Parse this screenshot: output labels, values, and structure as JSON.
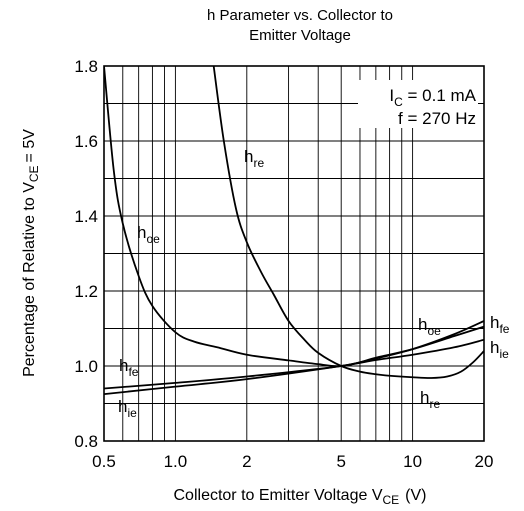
{
  "chart_data": {
    "type": "line",
    "title_line1": "h Parameter vs. Collector to",
    "title_line2": "Emitter Voltage",
    "xlabel": {
      "main": "Collector to Emitter Voltage V",
      "sub": "CE",
      "unit": "(V)"
    },
    "ylabel": {
      "main": "Percentage of Relative to V",
      "sub": "CE",
      "tail": "= 5V"
    },
    "x_scale": "log",
    "xlim": [
      0.5,
      20
    ],
    "ylim": [
      0.8,
      1.8
    ],
    "grid": true,
    "x_ticks": [
      {
        "value": 0.5,
        "label": "0.5"
      },
      {
        "value": 1,
        "label": "1.0"
      },
      {
        "value": 2,
        "label": "2"
      },
      {
        "value": 5,
        "label": "5"
      },
      {
        "value": 10,
        "label": "10"
      },
      {
        "value": 20,
        "label": "20"
      }
    ],
    "y_ticks": [
      {
        "value": 0.8,
        "label": "0.8"
      },
      {
        "value": 1.0,
        "label": "1.0"
      },
      {
        "value": 1.2,
        "label": "1.2"
      },
      {
        "value": 1.4,
        "label": "1.4"
      },
      {
        "value": 1.6,
        "label": "1.6"
      },
      {
        "value": 1.8,
        "label": "1.8"
      }
    ],
    "conditions": [
      {
        "main": "I",
        "sub": "C",
        "tail": " = 0.1 mA"
      },
      {
        "main": "f = 270 Hz",
        "sub": "",
        "tail": ""
      }
    ],
    "series": [
      {
        "name": "hoe",
        "label_main": "h",
        "label_sub": "oe",
        "x": [
          0.5,
          0.55,
          0.6,
          0.7,
          0.8,
          1.0,
          1.2,
          1.5,
          2,
          3,
          4,
          5,
          7,
          10,
          15,
          20
        ],
        "y": [
          1.8,
          1.52,
          1.38,
          1.24,
          1.16,
          1.09,
          1.065,
          1.05,
          1.03,
          1.015,
          1.005,
          1.0,
          1.02,
          1.045,
          1.085,
          1.12
        ]
      },
      {
        "name": "hre",
        "label_main": "h",
        "label_sub": "re",
        "x": [
          1.45,
          1.6,
          1.8,
          2.0,
          2.3,
          2.6,
          3.0,
          3.5,
          4.0,
          5.0,
          6,
          7,
          8,
          10,
          12,
          14,
          16,
          18,
          20
        ],
        "y": [
          1.8,
          1.6,
          1.42,
          1.33,
          1.25,
          1.19,
          1.12,
          1.07,
          1.035,
          1.0,
          0.985,
          0.978,
          0.974,
          0.97,
          0.968,
          0.972,
          0.985,
          1.01,
          1.04
        ]
      },
      {
        "name": "hfe",
        "label_main": "h",
        "label_sub": "fe",
        "x": [
          0.5,
          1,
          2,
          5,
          7,
          10,
          15,
          20
        ],
        "y": [
          0.94,
          0.955,
          0.972,
          1.0,
          1.022,
          1.045,
          1.08,
          1.105
        ]
      },
      {
        "name": "hie",
        "label_main": "h",
        "label_sub": "ie",
        "x": [
          0.5,
          1,
          2,
          5,
          7,
          10,
          15,
          20
        ],
        "y": [
          0.925,
          0.945,
          0.965,
          1.0,
          1.016,
          1.03,
          1.05,
          1.07
        ]
      }
    ]
  }
}
